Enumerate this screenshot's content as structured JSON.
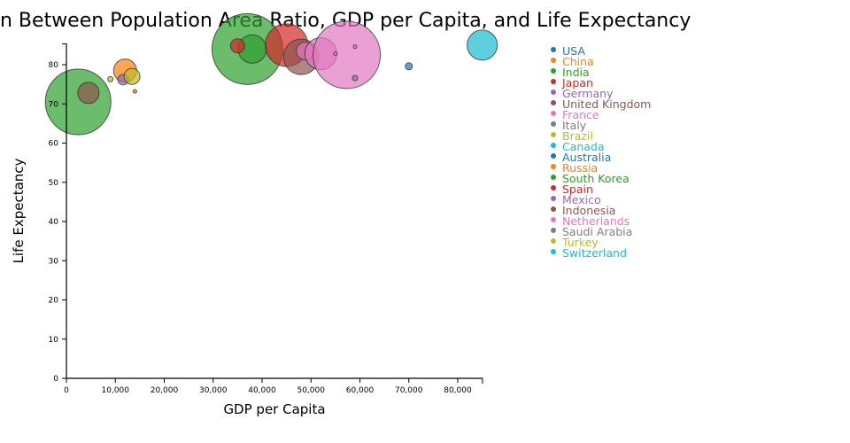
{
  "chart_data": {
    "type": "scatter",
    "title": "n Between Population Area Ratio, GDP per Capita, and Life Expectancy",
    "xlabel": "GDP per Capita",
    "ylabel": "Life Expectancy",
    "xlim": [
      0,
      85000
    ],
    "ylim": [
      0,
      85
    ],
    "xticks": [
      "0",
      "10,000",
      "20,000",
      "30,000",
      "40,000",
      "50,000",
      "60,000",
      "70,000",
      "80,000"
    ],
    "yticks": [
      "0",
      "10",
      "20",
      "30",
      "40",
      "50",
      "60",
      "70",
      "80"
    ],
    "grid": false,
    "legend_position": "right",
    "colors": [
      "#1f77b4",
      "#ff7f0e",
      "#2ca02c",
      "#d62728",
      "#9467bd",
      "#8c564b",
      "#e377c2",
      "#7f7f7f",
      "#bcbd22",
      "#17becf"
    ],
    "legend": [
      "USA",
      "China",
      "India",
      "Japan",
      "Germany",
      "United Kingdom",
      "France",
      "Italy",
      "Brazil",
      "Canada",
      "Australia",
      "Russia",
      "South Korea",
      "Spain",
      "Mexico",
      "Indonesia",
      "Netherlands",
      "Saudi Arabia",
      "Turkey",
      "Switzerland"
    ],
    "points": [
      {
        "gdp": 2400,
        "life": 70.5,
        "size": 37,
        "color": 2
      },
      {
        "gdp": 4500,
        "life": 72.8,
        "size": 12,
        "color": 5
      },
      {
        "gdp": 12000,
        "life": 78.5,
        "size": 13,
        "color": 1
      },
      {
        "gdp": 11600,
        "life": 76.2,
        "size": 6,
        "color": 4
      },
      {
        "gdp": 13400,
        "life": 77.0,
        "size": 9,
        "color": 8
      },
      {
        "gdp": 9000,
        "life": 76.3,
        "size": 3,
        "color": 8
      },
      {
        "gdp": 14000,
        "life": 73.2,
        "size": 2,
        "color": 1
      },
      {
        "gdp": 37000,
        "life": 84.0,
        "size": 40,
        "color": 2
      },
      {
        "gdp": 38000,
        "life": 84.0,
        "size": 16,
        "color": 2
      },
      {
        "gdp": 35000,
        "life": 84.8,
        "size": 8,
        "color": 3
      },
      {
        "gdp": 45000,
        "life": 85.0,
        "size": 24,
        "color": 3
      },
      {
        "gdp": 48000,
        "life": 82.0,
        "size": 20,
        "color": 5
      },
      {
        "gdp": 48800,
        "life": 83.5,
        "size": 10,
        "color": 6
      },
      {
        "gdp": 52000,
        "life": 82.8,
        "size": 18,
        "color": 6
      },
      {
        "gdp": 57300,
        "life": 82.5,
        "size": 38,
        "color": 6
      },
      {
        "gdp": 59000,
        "life": 84.6,
        "size": 2,
        "color": 6
      },
      {
        "gdp": 55000,
        "life": 82.8,
        "size": 2,
        "color": 6
      },
      {
        "gdp": 59000,
        "life": 76.6,
        "size": 3,
        "color": 7
      },
      {
        "gdp": 70000,
        "life": 79.6,
        "size": 4,
        "color": 0
      },
      {
        "gdp": 85000,
        "life": 85.0,
        "size": 17,
        "color": 9
      }
    ]
  }
}
